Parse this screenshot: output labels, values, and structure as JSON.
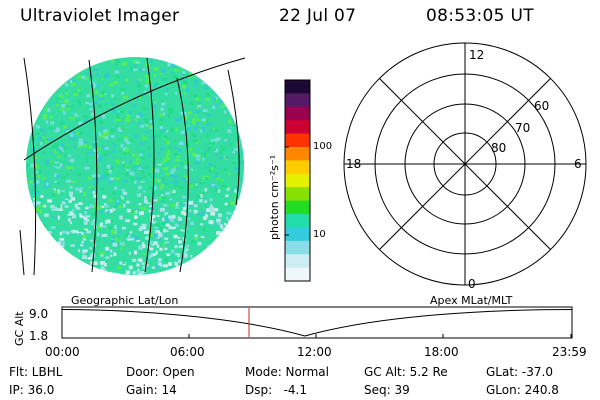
{
  "header": {
    "instrument": "Ultraviolet Imager",
    "date": "22 Jul 07",
    "time": "08:53:05 UT"
  },
  "colorbar": {
    "unit_label": "photon cm⁻²s⁻¹",
    "ticks": [
      "100",
      "10"
    ],
    "colors": [
      "#1a0a33",
      "#551a66",
      "#99004d",
      "#cc0033",
      "#ff3300",
      "#ff8800",
      "#ffcc00",
      "#e5f000",
      "#88e000",
      "#22dd22",
      "#22ddaa",
      "#33ccdd",
      "#88dde6",
      "#cceef2",
      "#eef8fa"
    ]
  },
  "labels": {
    "geo": "Geographic Lat/Lon",
    "apex": "Apex MLat/MLT"
  },
  "polar": {
    "mlt": [
      "12",
      "18",
      "6",
      "0"
    ],
    "mlat": [
      "60",
      "70",
      "80"
    ]
  },
  "timeline": {
    "axis_label": "GC Alt",
    "y_ticks": [
      "9.0",
      "1.8"
    ],
    "x_ticks": [
      "00:00",
      "06:00",
      "12:00",
      "18:00",
      "23:59"
    ]
  },
  "status": {
    "flt": "Flt: LBHL",
    "ip": "IP: 36.0",
    "door": "Door: Open",
    "gain": "Gain: 14",
    "mode": "Mode: Normal",
    "dsp": "Dsp:   -4.1",
    "gcalt": "GC Alt: 5.2 Re",
    "seq": "Seq: 39",
    "glat": "GLat: -37.0",
    "glon": "GLon: 240.8"
  }
}
